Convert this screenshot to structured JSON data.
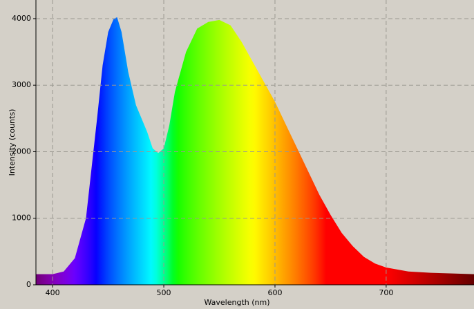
{
  "chart_data": {
    "type": "area",
    "xlabel": "Wavelength (nm)",
    "ylabel": "Intensity (counts)",
    "x": [
      385,
      400,
      410,
      420,
      430,
      440,
      445,
      450,
      455,
      458,
      462,
      468,
      475,
      480,
      485,
      490,
      495,
      500,
      505,
      510,
      520,
      530,
      540,
      550,
      560,
      570,
      580,
      590,
      600,
      610,
      620,
      630,
      640,
      650,
      660,
      670,
      680,
      690,
      700,
      720,
      740,
      760,
      779
    ],
    "values": [
      160,
      160,
      200,
      400,
      1000,
      2500,
      3300,
      3800,
      4000,
      4020,
      3800,
      3200,
      2700,
      2500,
      2300,
      2050,
      1980,
      2050,
      2400,
      2900,
      3500,
      3850,
      3950,
      3980,
      3900,
      3650,
      3350,
      3050,
      2750,
      2400,
      2050,
      1700,
      1350,
      1050,
      780,
      580,
      420,
      320,
      260,
      200,
      180,
      170,
      160
    ],
    "xlim": [
      385,
      779
    ],
    "ylim": [
      0,
      4280
    ],
    "xticks": [
      400,
      500,
      600,
      700
    ],
    "yticks": [
      0,
      1000,
      2000,
      3000,
      4000
    ],
    "grid": true
  }
}
